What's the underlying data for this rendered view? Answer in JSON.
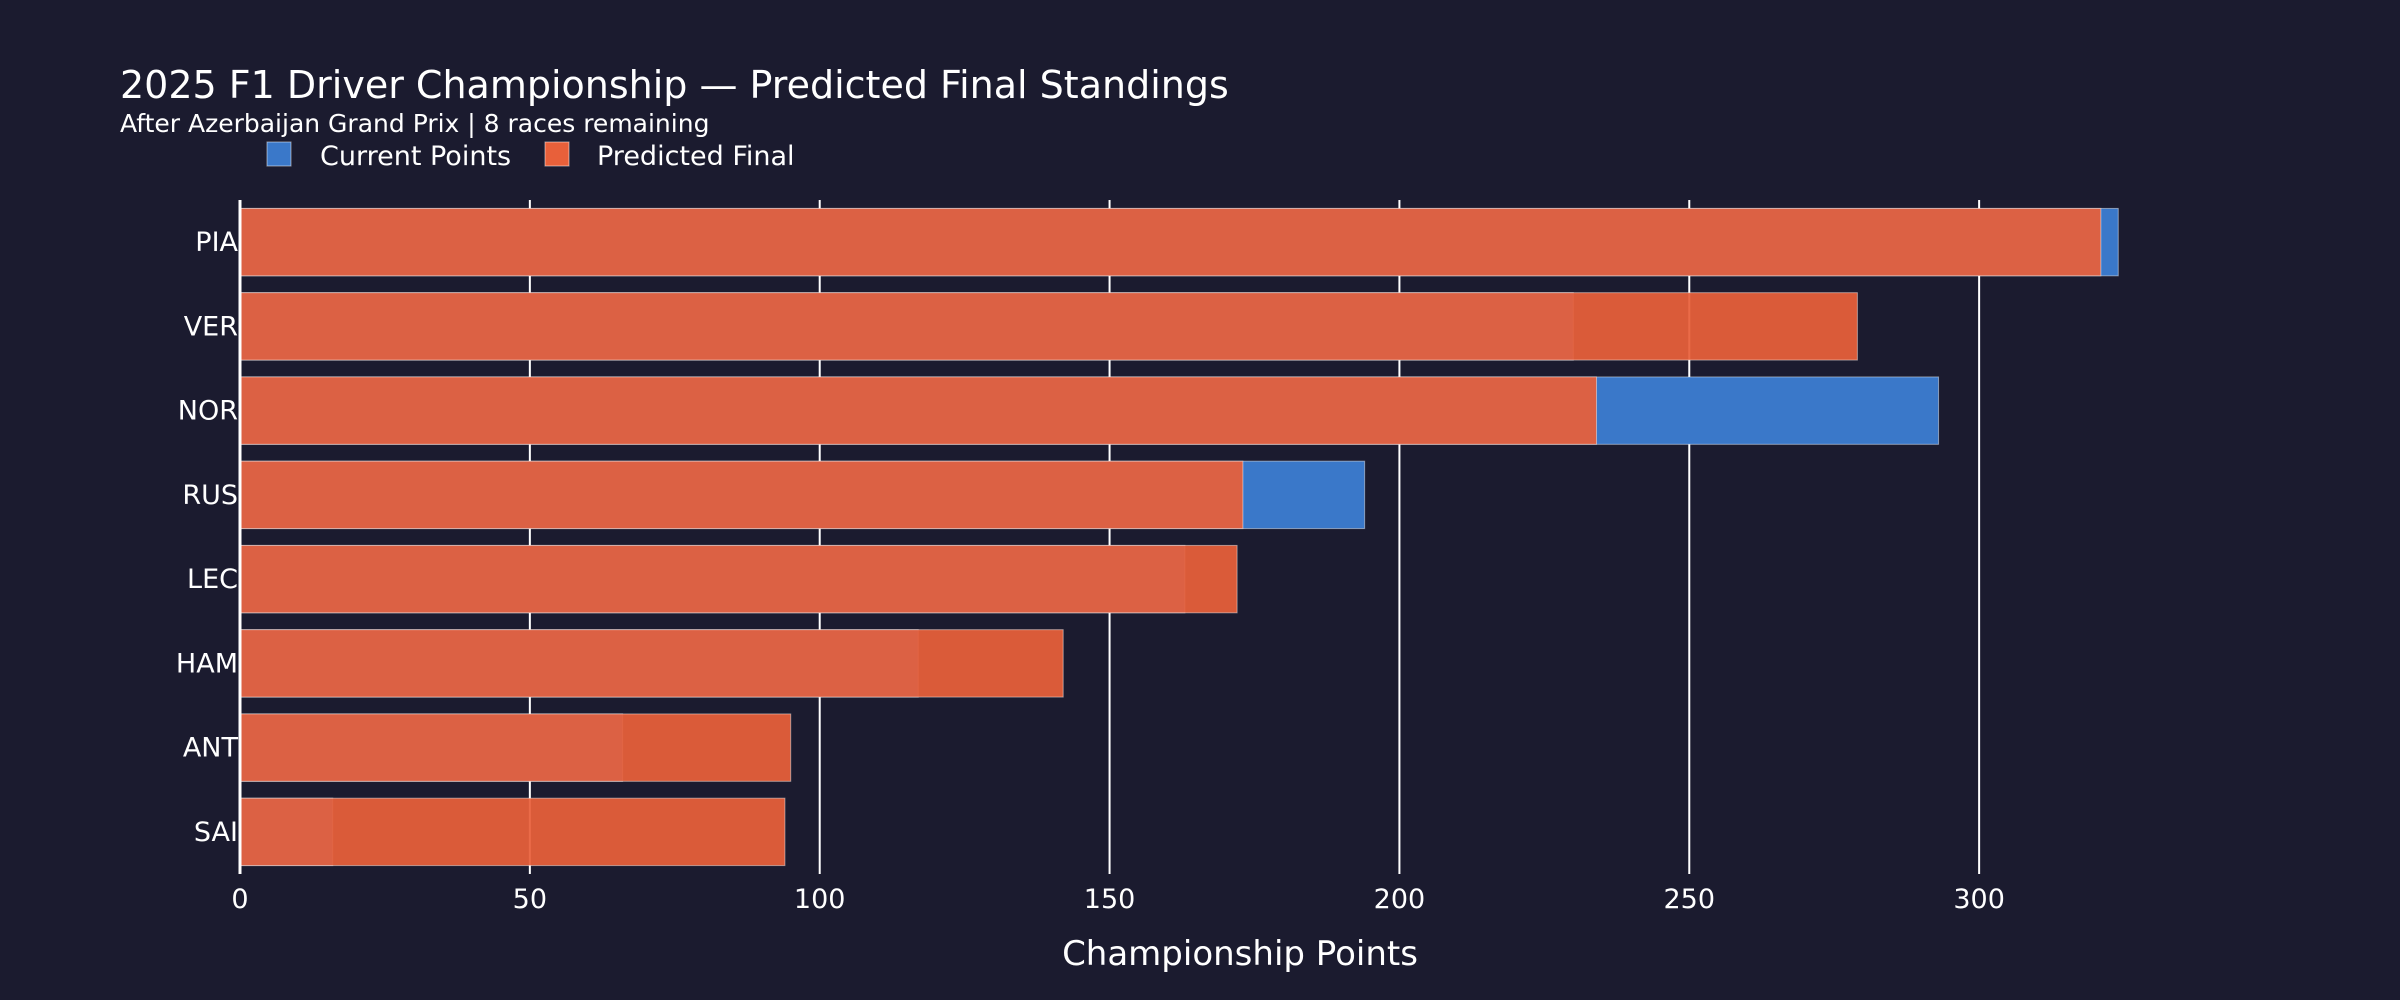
{
  "chart_data": {
    "type": "bar",
    "orientation": "horizontal",
    "title": "2025 F1 Driver Championship — Predicted Final Standings",
    "subtitle": "After Azerbaijan Grand Prix | 8 races remaining",
    "xlabel": "Championship Points",
    "ylabel": "",
    "xlim": [
      0,
      345
    ],
    "xticks": [
      0,
      50,
      100,
      150,
      200,
      250,
      300
    ],
    "grid": true,
    "legend_position": "top-left",
    "categories": [
      "PIA",
      "VER",
      "NOR",
      "RUS",
      "LEC",
      "HAM",
      "ANT",
      "SAI"
    ],
    "series": [
      {
        "name": "Current Points",
        "color": "#3a78c9",
        "values": [
          324,
          230,
          293,
          194,
          163,
          117,
          66,
          16
        ]
      },
      {
        "name": "Predicted Final",
        "color": "#e8603a",
        "values": [
          321,
          279,
          234,
          173,
          172,
          142,
          95,
          94
        ]
      }
    ]
  }
}
